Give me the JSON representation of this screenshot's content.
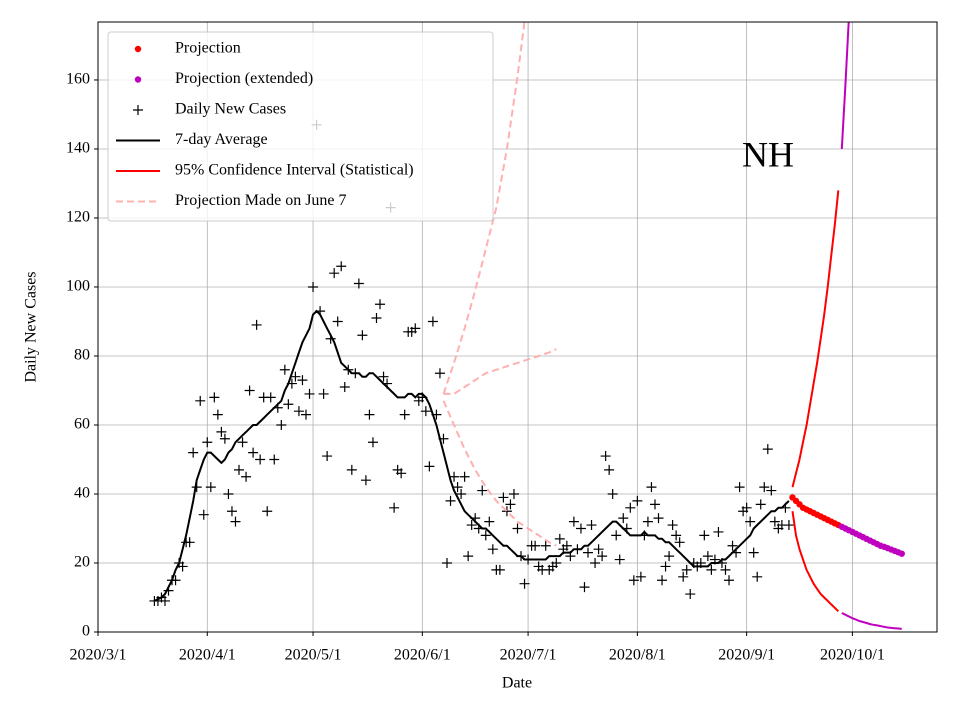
{
  "chart_data": {
    "type": "line",
    "xlabel": "Date",
    "ylabel": "Daily New Cases",
    "annotation": "NH",
    "xlim": [
      "2020-03-01",
      "2020-10-25"
    ],
    "xticks": [
      {
        "value": "2020-03-01",
        "label": "2020/3/1"
      },
      {
        "value": "2020-04-01",
        "label": "2020/4/1"
      },
      {
        "value": "2020-05-01",
        "label": "2020/5/1"
      },
      {
        "value": "2020-06-01",
        "label": "2020/6/1"
      },
      {
        "value": "2020-07-01",
        "label": "2020/7/1"
      },
      {
        "value": "2020-08-01",
        "label": "2020/8/1"
      },
      {
        "value": "2020-09-01",
        "label": "2020/9/1"
      },
      {
        "value": "2020-10-01",
        "label": "2020/10/1"
      }
    ],
    "ylim": [
      0,
      176.8
    ],
    "yticks": [
      0,
      20,
      40,
      60,
      80,
      100,
      120,
      140,
      160
    ],
    "grid": true,
    "legend": "upper left",
    "x": [
      "2020-03-17",
      "2020-03-18",
      "2020-03-19",
      "2020-03-20",
      "2020-03-21",
      "2020-03-22",
      "2020-03-23",
      "2020-03-24",
      "2020-03-25",
      "2020-03-26",
      "2020-03-27",
      "2020-03-28",
      "2020-03-29",
      "2020-03-30",
      "2020-03-31",
      "2020-04-01",
      "2020-04-02",
      "2020-04-03",
      "2020-04-04",
      "2020-04-05",
      "2020-04-06",
      "2020-04-07",
      "2020-04-08",
      "2020-04-09",
      "2020-04-10",
      "2020-04-11",
      "2020-04-12",
      "2020-04-13",
      "2020-04-14",
      "2020-04-15",
      "2020-04-16",
      "2020-04-17",
      "2020-04-18",
      "2020-04-19",
      "2020-04-20",
      "2020-04-21",
      "2020-04-22",
      "2020-04-23",
      "2020-04-24",
      "2020-04-25",
      "2020-04-26",
      "2020-04-27",
      "2020-04-28",
      "2020-04-29",
      "2020-04-30",
      "2020-05-01",
      "2020-05-02",
      "2020-05-03",
      "2020-05-04",
      "2020-05-05",
      "2020-05-06",
      "2020-05-07",
      "2020-05-08",
      "2020-05-09",
      "2020-05-10",
      "2020-05-11",
      "2020-05-12",
      "2020-05-13",
      "2020-05-14",
      "2020-05-15",
      "2020-05-16",
      "2020-05-17",
      "2020-05-18",
      "2020-05-19",
      "2020-05-20",
      "2020-05-21",
      "2020-05-22",
      "2020-05-23",
      "2020-05-24",
      "2020-05-25",
      "2020-05-26",
      "2020-05-27",
      "2020-05-28",
      "2020-05-29",
      "2020-05-30",
      "2020-05-31",
      "2020-06-01",
      "2020-06-02",
      "2020-06-03",
      "2020-06-04",
      "2020-06-05",
      "2020-06-06",
      "2020-06-07",
      "2020-06-08",
      "2020-06-09",
      "2020-06-10",
      "2020-06-11",
      "2020-06-12",
      "2020-06-13",
      "2020-06-14",
      "2020-06-15",
      "2020-06-16",
      "2020-06-17",
      "2020-06-18",
      "2020-06-19",
      "2020-06-20",
      "2020-06-21",
      "2020-06-22",
      "2020-06-23",
      "2020-06-24",
      "2020-06-25",
      "2020-06-26",
      "2020-06-27",
      "2020-06-28",
      "2020-06-29",
      "2020-06-30",
      "2020-07-01",
      "2020-07-02",
      "2020-07-03",
      "2020-07-04",
      "2020-07-05",
      "2020-07-06",
      "2020-07-07",
      "2020-07-08",
      "2020-07-09",
      "2020-07-10",
      "2020-07-11",
      "2020-07-12",
      "2020-07-13",
      "2020-07-14",
      "2020-07-15",
      "2020-07-16",
      "2020-07-17",
      "2020-07-18",
      "2020-07-19",
      "2020-07-20",
      "2020-07-21",
      "2020-07-22",
      "2020-07-23",
      "2020-07-24",
      "2020-07-25",
      "2020-07-26",
      "2020-07-27",
      "2020-07-28",
      "2020-07-29",
      "2020-07-30",
      "2020-07-31",
      "2020-08-01",
      "2020-08-02",
      "2020-08-03",
      "2020-08-04",
      "2020-08-05",
      "2020-08-06",
      "2020-08-07",
      "2020-08-08",
      "2020-08-09",
      "2020-08-10",
      "2020-08-11",
      "2020-08-12",
      "2020-08-13",
      "2020-08-14",
      "2020-08-15",
      "2020-08-16",
      "2020-08-17",
      "2020-08-18",
      "2020-08-19",
      "2020-08-20",
      "2020-08-21",
      "2020-08-22",
      "2020-08-23",
      "2020-08-24",
      "2020-08-25",
      "2020-08-26",
      "2020-08-27",
      "2020-08-28",
      "2020-08-29",
      "2020-08-30",
      "2020-08-31",
      "2020-09-01",
      "2020-09-02",
      "2020-09-03",
      "2020-09-04",
      "2020-09-05",
      "2020-09-06",
      "2020-09-07",
      "2020-09-08",
      "2020-09-09",
      "2020-09-10",
      "2020-09-11",
      "2020-09-12",
      "2020-09-13"
    ],
    "series": [
      {
        "name": "Projection",
        "kind": "dots",
        "color": "#ff0000",
        "x": [
          "2020-09-14",
          "2020-09-15",
          "2020-09-16",
          "2020-09-17",
          "2020-09-18",
          "2020-09-19",
          "2020-09-20",
          "2020-09-21",
          "2020-09-22",
          "2020-09-23",
          "2020-09-24",
          "2020-09-25",
          "2020-09-26",
          "2020-09-27"
        ],
        "values": [
          39,
          38,
          37,
          36,
          35.5,
          35,
          34.5,
          34,
          33.5,
          33,
          32.5,
          32,
          31.5,
          31
        ]
      },
      {
        "name": "Projection (extended)",
        "kind": "dots",
        "color": "#bf00bf",
        "x": [
          "2020-09-28",
          "2020-09-29",
          "2020-09-30",
          "2020-10-01",
          "2020-10-02",
          "2020-10-03",
          "2020-10-04",
          "2020-10-05",
          "2020-10-06",
          "2020-10-07",
          "2020-10-08",
          "2020-10-09",
          "2020-10-10",
          "2020-10-11",
          "2020-10-12",
          "2020-10-13",
          "2020-10-14",
          "2020-10-15"
        ],
        "values": [
          30.5,
          30,
          29.5,
          29,
          28.5,
          28,
          27.5,
          27,
          26.5,
          26,
          25.5,
          25,
          24.7,
          24.3,
          23.9,
          23.5,
          23.1,
          22.7
        ]
      },
      {
        "name": "Daily New Cases",
        "kind": "plus",
        "color": "#000000",
        "values": [
          9,
          9,
          10,
          9,
          12,
          15,
          15,
          20,
          19,
          26,
          26,
          52,
          42,
          67,
          34,
          55,
          42,
          68,
          63,
          58,
          56,
          40,
          35,
          32,
          47,
          55,
          45,
          70,
          52,
          89,
          50,
          68,
          35,
          68,
          50,
          65,
          60,
          76,
          66,
          72,
          74,
          64,
          73,
          63,
          69,
          100,
          147,
          93,
          69,
          51,
          85,
          104,
          90,
          106,
          71,
          76,
          47,
          75,
          101,
          86,
          44,
          63,
          55,
          91,
          95,
          74,
          72,
          123,
          36,
          47,
          46,
          63,
          87,
          87,
          88,
          67,
          68,
          64,
          48,
          90,
          63,
          75,
          56,
          20,
          38,
          45,
          42,
          40,
          45,
          22,
          31,
          33,
          30,
          41,
          28,
          32,
          24,
          18,
          18,
          39,
          35,
          37,
          40,
          30,
          22,
          14,
          21,
          25,
          25,
          19,
          18,
          25,
          18,
          19,
          20,
          27,
          24,
          25,
          22,
          32,
          24,
          30,
          13,
          23,
          31,
          20,
          24,
          22,
          51,
          47,
          40,
          28,
          21,
          33,
          30,
          36,
          15,
          38,
          16,
          28,
          32,
          42,
          37,
          33,
          15,
          19,
          22,
          31,
          28,
          26,
          16,
          18,
          11,
          20,
          19,
          20,
          28,
          22,
          18,
          21,
          29,
          20,
          18,
          15,
          25,
          23,
          42,
          35,
          36,
          32,
          23,
          16,
          37,
          42,
          53,
          41,
          32,
          30,
          31,
          36,
          31
        ]
      },
      {
        "name": "7-day Average",
        "kind": "line",
        "color": "#000000",
        "values": [
          9,
          9.5,
          10,
          11,
          13,
          15,
          18,
          20,
          24,
          28,
          33,
          38,
          44,
          47,
          50,
          52,
          52,
          51,
          50,
          49,
          50,
          52,
          53,
          55,
          56,
          57,
          58,
          59,
          60,
          60,
          61,
          62,
          63,
          64,
          65,
          66,
          67,
          70,
          72,
          75,
          78,
          81,
          84,
          86,
          88,
          92,
          93,
          92,
          90,
          88,
          86,
          84,
          81,
          78,
          77,
          76,
          75,
          75,
          75,
          74,
          74,
          75,
          75,
          74,
          73,
          72,
          71,
          70,
          69,
          68,
          68,
          68,
          69,
          69,
          68,
          69,
          69,
          68,
          66,
          63,
          60,
          56,
          52,
          48,
          44,
          41,
          39,
          37,
          35,
          34,
          33,
          32,
          31,
          30,
          30,
          29,
          28,
          27,
          26,
          25,
          25,
          24,
          23,
          22,
          22,
          21,
          21,
          21,
          21,
          21,
          21,
          21,
          22,
          22,
          22,
          22,
          23,
          23,
          23,
          24,
          24,
          24,
          25,
          25,
          26,
          27,
          28,
          29,
          30,
          31,
          32,
          32,
          31,
          30,
          29,
          28,
          28,
          28,
          28,
          29,
          28,
          28,
          28,
          27,
          27,
          26,
          26,
          25,
          24,
          23,
          22,
          21,
          20,
          19,
          19,
          19,
          19,
          19,
          20,
          20,
          20,
          21,
          21,
          22,
          23,
          24,
          25,
          26,
          27,
          28,
          30,
          31,
          32,
          33,
          34,
          35,
          35,
          36,
          36,
          37,
          38
        ]
      },
      {
        "name": "95% Confidence Interval (Statistical)",
        "kind": "line",
        "color": "#ff0000",
        "x": [
          "2020-09-14",
          "2020-09-15",
          "2020-09-16",
          "2020-09-17",
          "2020-09-18",
          "2020-09-19",
          "2020-09-20",
          "2020-09-21",
          "2020-09-22",
          "2020-09-23",
          "2020-09-24",
          "2020-09-25",
          "2020-09-26",
          "2020-09-27"
        ],
        "values": [
          42,
          46,
          50,
          55,
          60,
          66,
          72,
          78,
          85,
          92,
          100,
          109,
          118,
          128
        ]
      },
      {
        "kind": "line",
        "color": "#ff0000",
        "x": [
          "2020-09-14",
          "2020-09-15",
          "2020-09-16",
          "2020-09-17",
          "2020-09-18",
          "2020-09-19",
          "2020-09-20",
          "2020-09-21",
          "2020-09-22",
          "2020-09-23",
          "2020-09-24",
          "2020-09-25",
          "2020-09-26",
          "2020-09-27"
        ],
        "values": [
          35,
          28,
          24,
          21,
          18,
          16,
          14,
          12.5,
          11,
          10,
          9,
          8,
          7,
          6
        ]
      },
      {
        "kind": "line",
        "color": "#bf00bf",
        "x": [
          "2020-09-28",
          "2020-09-29",
          "2020-09-30",
          "2020-10-01"
        ],
        "values": [
          140,
          158,
          178,
          200
        ]
      },
      {
        "kind": "line",
        "color": "#bf00bf",
        "x": [
          "2020-09-28",
          "2020-09-29",
          "2020-09-30",
          "2020-10-01",
          "2020-10-02",
          "2020-10-03",
          "2020-10-04",
          "2020-10-05",
          "2020-10-06",
          "2020-10-07",
          "2020-10-08",
          "2020-10-09",
          "2020-10-10",
          "2020-10-11",
          "2020-10-12",
          "2020-10-13",
          "2020-10-14",
          "2020-10-15"
        ],
        "values": [
          5.5,
          5,
          4.5,
          4,
          3.6,
          3.2,
          2.9,
          2.6,
          2.3,
          2.1,
          1.9,
          1.7,
          1.5,
          1.3,
          1.2,
          1.1,
          1,
          0.9
        ]
      },
      {
        "name": "Projection Made on June 7",
        "kind": "dashed",
        "color": "#ffb0b0",
        "x": [
          "2020-06-07",
          "2020-06-10",
          "2020-06-13",
          "2020-06-16",
          "2020-06-19",
          "2020-06-22",
          "2020-06-25",
          "2020-06-28",
          "2020-07-01"
        ],
        "values": [
          69,
          78,
          88,
          99,
          111,
          123,
          140,
          161,
          185
        ]
      },
      {
        "kind": "dashed",
        "color": "#ffb0b0",
        "x": [
          "2020-06-07",
          "2020-06-10",
          "2020-06-13",
          "2020-06-16",
          "2020-06-19",
          "2020-06-22",
          "2020-06-25",
          "2020-06-28",
          "2020-07-01",
          "2020-07-04",
          "2020-07-07",
          "2020-07-09"
        ],
        "values": [
          69,
          69,
          71,
          73,
          75,
          76,
          77,
          78,
          79,
          80,
          81,
          82
        ]
      },
      {
        "kind": "dashed",
        "color": "#ffb0b0",
        "x": [
          "2020-06-07",
          "2020-06-10",
          "2020-06-13",
          "2020-06-16",
          "2020-06-19",
          "2020-06-22",
          "2020-06-25",
          "2020-06-28",
          "2020-07-01",
          "2020-07-04",
          "2020-07-07",
          "2020-07-09"
        ],
        "values": [
          67,
          60,
          53,
          47,
          42,
          38,
          35,
          32,
          30,
          28,
          26,
          25
        ]
      }
    ]
  }
}
